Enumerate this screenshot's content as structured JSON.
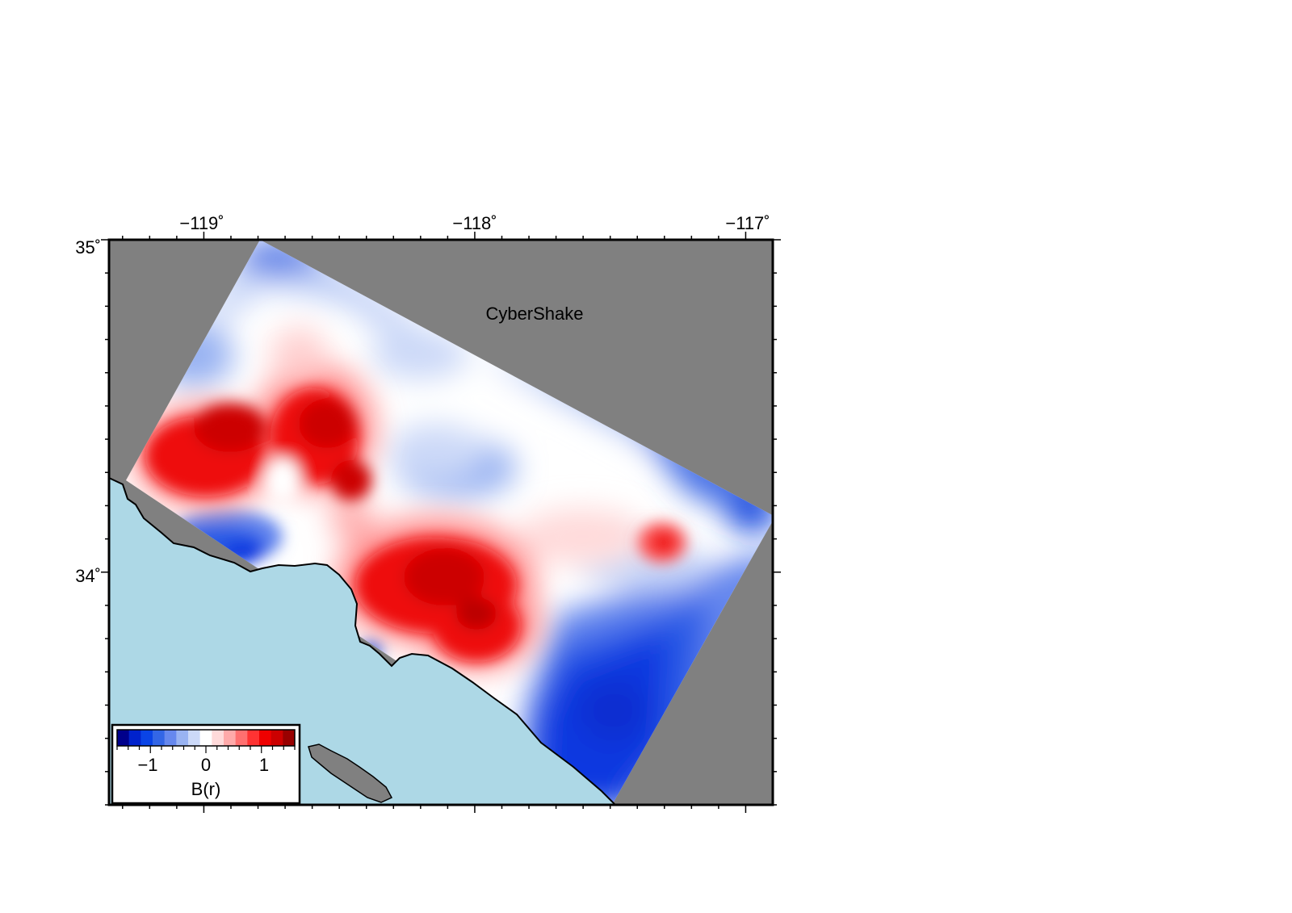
{
  "map": {
    "title": "CyberShake",
    "longitude_ticks": [
      "−119˚",
      "−118˚",
      "−117˚"
    ],
    "latitude_ticks": [
      "35˚",
      "34˚"
    ],
    "extent": {
      "lon_min": -119.35,
      "lon_max": -116.9,
      "lat_min": 33.3,
      "lat_max": 35.0
    },
    "colors": {
      "land_outside_domain": "#808080",
      "ocean": "#add8e6",
      "island": "#808080",
      "coastline": "#000000"
    }
  },
  "colorbar": {
    "label": "B(r)",
    "ticks": [
      "−1",
      "0",
      "1"
    ],
    "range": [
      -1.6,
      1.6
    ],
    "colors": [
      "#00008b",
      "#0022cc",
      "#0a44e6",
      "#3366e6",
      "#6688ee",
      "#99b3f2",
      "#ccd9f8",
      "#ffffff",
      "#ffdada",
      "#ffaaaa",
      "#ff7070",
      "#ff3333",
      "#ee0000",
      "#cc0000",
      "#990000"
    ]
  }
}
